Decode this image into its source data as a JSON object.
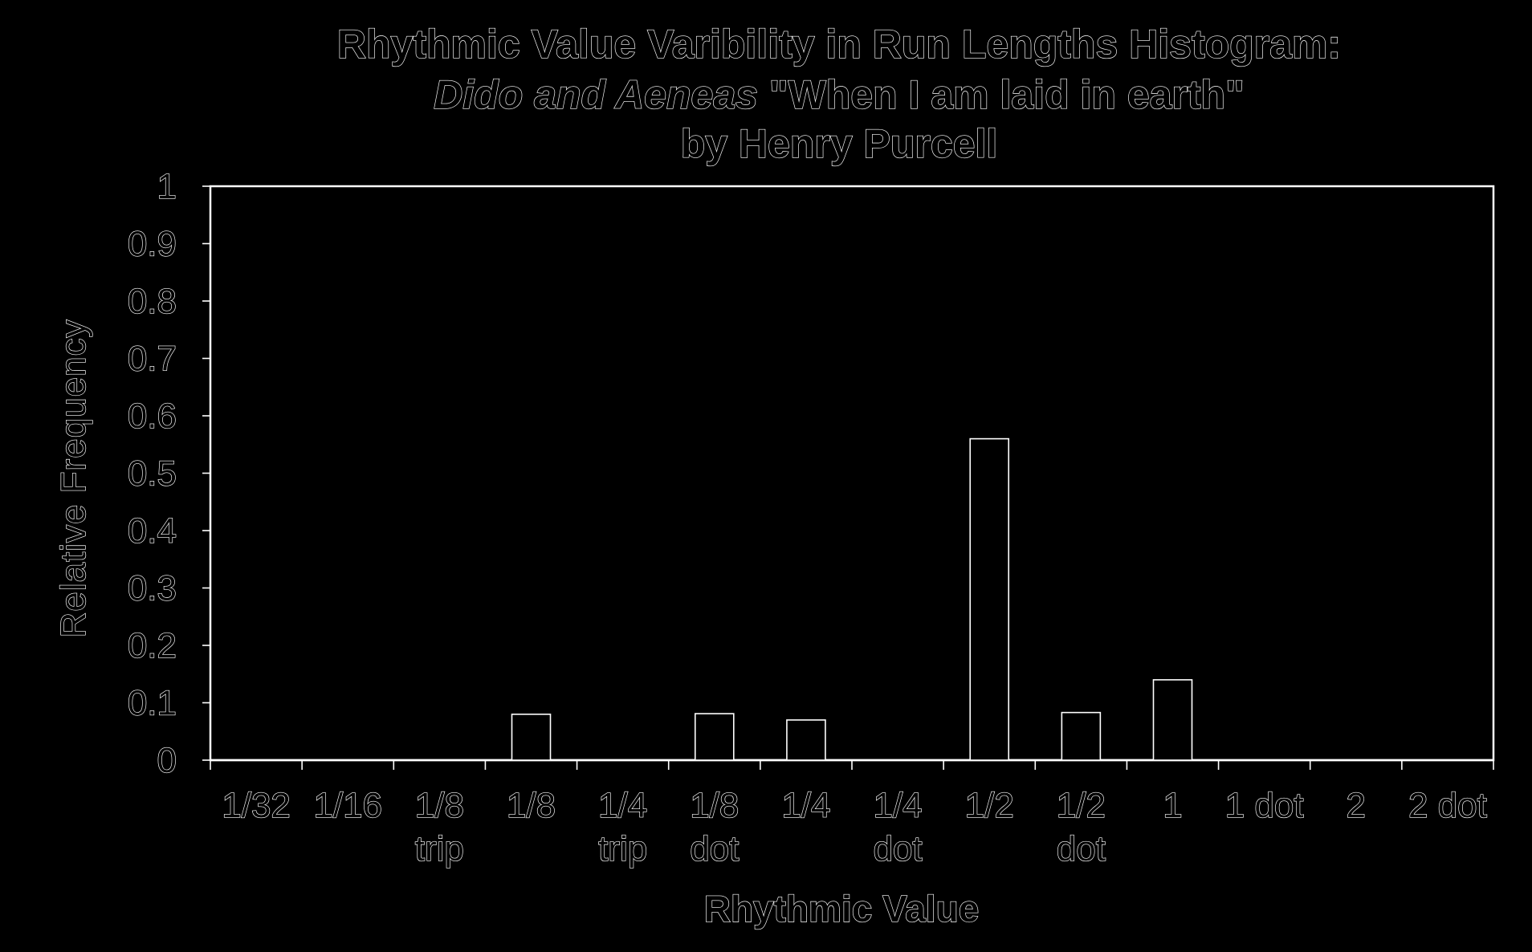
{
  "chart_data": {
    "type": "bar",
    "title": {
      "line1": "Rhythmic Value Varibility in Run Lengths Histogram:",
      "line2_italic": "Dido and Aeneas",
      "line2_rest": " \"When I am laid in earth\"",
      "line3": "by Henry Purcell"
    },
    "xlabel": "Rhythmic Value",
    "ylabel": "Relative Frequency",
    "ylim": [
      0,
      1
    ],
    "yticks": [
      "0",
      "0.1",
      "0.2",
      "0.3",
      "0.4",
      "0.5",
      "0.6",
      "0.7",
      "0.8",
      "0.9",
      "1"
    ],
    "categories": [
      {
        "line1": "1/32",
        "line2": ""
      },
      {
        "line1": "1/16",
        "line2": ""
      },
      {
        "line1": "1/8",
        "line2": "trip"
      },
      {
        "line1": "1/8",
        "line2": ""
      },
      {
        "line1": "1/4",
        "line2": "trip"
      },
      {
        "line1": "1/8",
        "line2": "dot"
      },
      {
        "line1": "1/4",
        "line2": ""
      },
      {
        "line1": "1/4",
        "line2": "dot"
      },
      {
        "line1": "1/2",
        "line2": ""
      },
      {
        "line1": "1/2",
        "line2": "dot"
      },
      {
        "line1": "1",
        "line2": ""
      },
      {
        "line1": "1 dot",
        "line2": ""
      },
      {
        "line1": "2",
        "line2": ""
      },
      {
        "line1": "2 dot",
        "line2": ""
      }
    ],
    "values": [
      0,
      0,
      0,
      0.08,
      0,
      0.081,
      0.07,
      0,
      0.56,
      0.083,
      0.14,
      0,
      0,
      0
    ],
    "grid": false,
    "legend": "none"
  },
  "colors": {
    "background": "#000000",
    "outline": "#ffffff"
  }
}
